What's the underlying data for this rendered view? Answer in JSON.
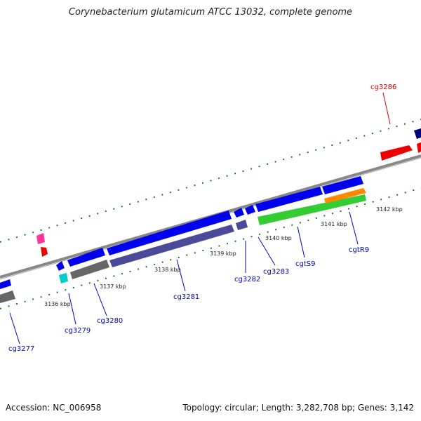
{
  "title": "Corynebacterium glutamicum ATCC 13032, complete genome",
  "footer": {
    "accession": "Accession: NC_006958",
    "topology": "Topology: circular; Length: 3,282,708 bp; Genes: 3,142"
  },
  "kbp_labels": [
    "3136 kbp",
    "3137 kbp",
    "3138 kbp",
    "3139 kbp",
    "3140 kbp",
    "3141 kbp",
    "3142 kbp"
  ],
  "genes": [
    {
      "id": "cg3277",
      "color": "#0000cc"
    },
    {
      "id": "cg3279",
      "color": "#0000cc"
    },
    {
      "id": "cg3280",
      "color": "#0000cc"
    },
    {
      "id": "cg3281",
      "color": "#0000cc"
    },
    {
      "id": "cg3282",
      "color": "#0000cc"
    },
    {
      "id": "cg3283",
      "color": "#0000cc"
    },
    {
      "id": "cgtS9",
      "color": "#0000cc"
    },
    {
      "id": "cgtR9",
      "color": "#0000cc"
    },
    {
      "id": "cg3286",
      "color": "#dd0000"
    }
  ]
}
